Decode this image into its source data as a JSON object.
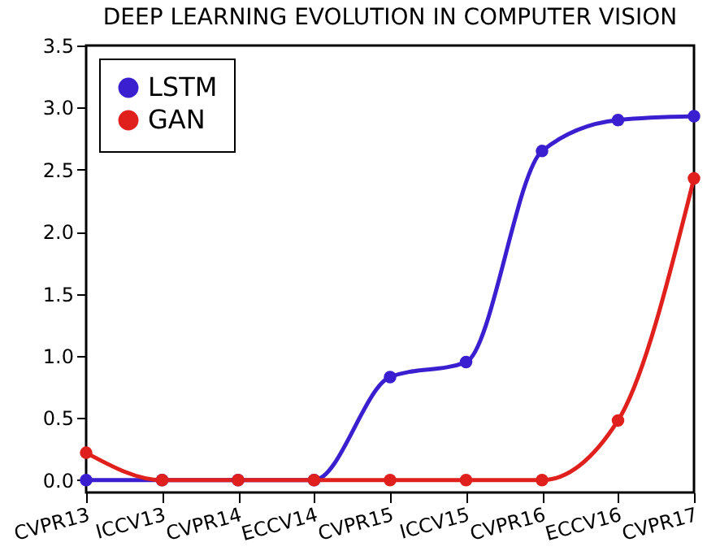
{
  "chart_data": {
    "type": "line",
    "title": "DEEP LEARNING EVOLUTION IN COMPUTER VISION",
    "categories": [
      "CVPR13",
      "ICCV13",
      "CVPR14",
      "ECCV14",
      "CVPR15",
      "ICCV15",
      "CVPR16",
      "ECCV16",
      "CVPR17"
    ],
    "series": [
      {
        "name": "LSTM",
        "color": "#3a1fd0",
        "values": [
          0,
          0,
          0,
          0,
          0.83,
          0.95,
          2.65,
          2.9,
          2.93
        ]
      },
      {
        "name": "GAN",
        "color": "#e0201c",
        "values": [
          0.22,
          0,
          0,
          0,
          0,
          0,
          0,
          0.48,
          2.43
        ]
      }
    ],
    "ylim": [
      -0.1,
      3.5
    ],
    "yticks": [
      {
        "value": 0,
        "label": "0.0"
      },
      {
        "value": 0.5,
        "label": "0.5"
      },
      {
        "value": 1,
        "label": "1.0"
      },
      {
        "value": 1.5,
        "label": "1.5"
      },
      {
        "value": 2,
        "label": "2.0"
      },
      {
        "value": 2.5,
        "label": "2.5"
      },
      {
        "value": 3,
        "label": "3.0"
      },
      {
        "value": 3.5,
        "label": "3.5"
      }
    ],
    "grid": false,
    "legend": "top left",
    "marker": "circle",
    "line_style": "solid"
  }
}
